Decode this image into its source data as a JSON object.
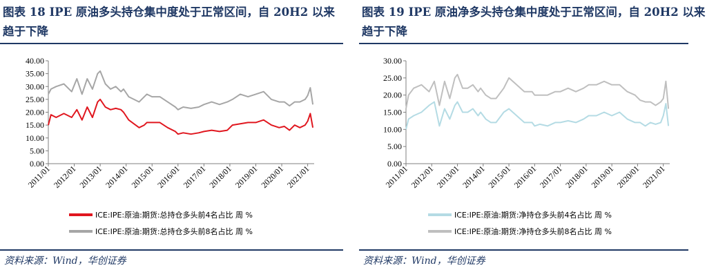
{
  "left": {
    "title": "图表 18   IPE 原油多头持仓集中度处于正常区间，自 20H2 以来趋于下降",
    "source": "资料来源：Wind，华创证券"
  },
  "right": {
    "title": "图表 19   IPE 原油净多头持仓集中度处于正常区间，自 20H2 以来趋于下降",
    "source": "资料来源：Wind，华创证券"
  },
  "chart_data": [
    {
      "type": "line",
      "ylim": [
        0,
        40
      ],
      "yticks": [
        "0.00",
        "5.00",
        "10.00",
        "15.00",
        "20.00",
        "25.00",
        "30.00",
        "35.00",
        "40.00"
      ],
      "categories": [
        "2011/01",
        "2012/01",
        "2013/01",
        "2014/01",
        "2015/01",
        "2016/01",
        "2017/01",
        "2018/01",
        "2019/01",
        "2020/01",
        "2021/01"
      ],
      "xlabel": "",
      "ylabel": "",
      "legend_position": "bottom",
      "series": [
        {
          "name": "ICE:IPE:原油:期货:总持仓多头前4名占比  周 %",
          "color": "#e0161e",
          "x": [
            2011.0,
            2011.1,
            2011.3,
            2011.6,
            2011.9,
            2012.1,
            2012.3,
            2012.5,
            2012.7,
            2012.9,
            2013.0,
            2013.2,
            2013.4,
            2013.6,
            2013.8,
            2013.9,
            2014.1,
            2014.3,
            2014.5,
            2014.7,
            2014.8,
            2015.0,
            2015.3,
            2015.6,
            2015.9,
            2016.0,
            2016.2,
            2016.5,
            2016.8,
            2017.0,
            2017.3,
            2017.6,
            2017.9,
            2018.1,
            2018.4,
            2018.7,
            2019.0,
            2019.3,
            2019.6,
            2019.9,
            2020.1,
            2020.3,
            2020.5,
            2020.7,
            2020.9,
            2021.0,
            2021.1,
            2021.2
          ],
          "values": [
            15,
            19,
            18,
            19.5,
            18,
            21,
            17,
            22,
            18,
            24,
            25,
            22,
            21,
            21.5,
            21,
            20,
            17,
            15.5,
            14,
            15,
            16,
            16,
            16,
            14,
            12.5,
            11.5,
            12,
            11.5,
            12,
            12.5,
            13,
            12.5,
            13,
            15,
            15.5,
            16,
            16,
            17,
            15,
            14,
            14.5,
            13,
            15,
            14,
            15,
            16.5,
            19.5,
            14
          ]
        },
        {
          "name": "ICE:IPE:原油:期货:总持仓多头前8名占比  周 %",
          "color": "#a6a6a6",
          "x": [
            2011.0,
            2011.1,
            2011.3,
            2011.6,
            2011.9,
            2012.1,
            2012.3,
            2012.5,
            2012.7,
            2012.9,
            2013.0,
            2013.2,
            2013.4,
            2013.6,
            2013.8,
            2013.9,
            2014.1,
            2014.3,
            2014.5,
            2014.7,
            2014.8,
            2015.0,
            2015.3,
            2015.6,
            2015.9,
            2016.0,
            2016.2,
            2016.5,
            2016.8,
            2017.0,
            2017.3,
            2017.6,
            2017.9,
            2018.1,
            2018.4,
            2018.7,
            2019.0,
            2019.3,
            2019.6,
            2019.9,
            2020.1,
            2020.3,
            2020.5,
            2020.7,
            2020.9,
            2021.0,
            2021.1,
            2021.2
          ],
          "values": [
            27,
            29,
            30,
            31,
            28,
            33,
            27,
            33,
            29,
            35,
            36,
            31,
            29,
            30,
            28,
            29,
            26,
            25,
            24,
            26,
            27,
            26,
            26,
            24,
            22,
            21,
            22,
            21.5,
            22,
            23,
            24,
            23,
            24,
            25,
            27,
            26,
            27,
            28,
            25,
            24,
            24,
            22.5,
            24,
            24,
            25,
            26.5,
            29.5,
            23
          ]
        }
      ]
    },
    {
      "type": "line",
      "ylim": [
        0,
        30
      ],
      "yticks": [
        "0.00",
        "5.00",
        "10.00",
        "15.00",
        "20.00",
        "25.00",
        "30.00"
      ],
      "categories": [
        "2011/01",
        "2012/01",
        "2013/01",
        "2014/01",
        "2015/01",
        "2016/01",
        "2017/01",
        "2018/01",
        "2019/01",
        "2020/01",
        "2021/01"
      ],
      "xlabel": "",
      "ylabel": "",
      "legend_position": "bottom",
      "series": [
        {
          "name": "ICE:IPE:原油:期货:净持仓多头前4名占比  周 %",
          "color": "#b4dbe4",
          "x": [
            2011.0,
            2011.1,
            2011.3,
            2011.6,
            2011.9,
            2012.1,
            2012.3,
            2012.5,
            2012.7,
            2012.9,
            2013.0,
            2013.2,
            2013.4,
            2013.6,
            2013.8,
            2013.9,
            2014.1,
            2014.3,
            2014.5,
            2014.7,
            2014.8,
            2015.0,
            2015.3,
            2015.6,
            2015.9,
            2016.0,
            2016.2,
            2016.5,
            2016.8,
            2017.0,
            2017.3,
            2017.6,
            2017.9,
            2018.1,
            2018.4,
            2018.7,
            2019.0,
            2019.3,
            2019.6,
            2019.9,
            2020.1,
            2020.3,
            2020.5,
            2020.7,
            2020.9,
            2021.0,
            2021.1,
            2021.2
          ],
          "values": [
            10,
            13,
            14,
            15,
            17,
            18,
            11,
            16,
            13,
            17,
            18,
            15,
            15,
            16,
            14,
            15,
            13,
            12,
            12,
            14,
            15,
            16,
            14,
            12,
            12,
            11,
            11.5,
            11,
            12,
            12,
            12.5,
            12,
            13,
            14,
            14,
            15,
            14,
            15,
            13,
            12,
            12,
            11,
            12,
            11.5,
            12,
            14,
            17.5,
            11
          ]
        },
        {
          "name": "ICE:IPE:原油:期货:净持仓多头前8名占比  周 %",
          "color": "#bfbfbf",
          "x": [
            2011.0,
            2011.1,
            2011.3,
            2011.6,
            2011.9,
            2012.1,
            2012.3,
            2012.5,
            2012.7,
            2012.9,
            2013.0,
            2013.2,
            2013.4,
            2013.6,
            2013.8,
            2013.9,
            2014.1,
            2014.3,
            2014.5,
            2014.7,
            2014.8,
            2015.0,
            2015.3,
            2015.6,
            2015.9,
            2016.0,
            2016.2,
            2016.5,
            2016.8,
            2017.0,
            2017.3,
            2017.6,
            2017.9,
            2018.1,
            2018.4,
            2018.7,
            2019.0,
            2019.3,
            2019.6,
            2019.9,
            2020.1,
            2020.3,
            2020.5,
            2020.7,
            2020.9,
            2021.0,
            2021.1,
            2021.2
          ],
          "values": [
            16,
            20,
            22,
            23,
            21,
            24,
            17,
            24,
            19,
            25,
            26,
            22,
            22,
            23,
            21,
            22,
            20,
            19,
            19,
            21,
            22,
            25,
            23,
            21,
            21,
            20,
            20,
            20,
            21,
            21,
            22,
            21,
            22,
            23,
            23,
            24,
            23,
            23,
            21,
            20,
            18.5,
            18,
            18,
            17,
            18,
            19,
            24,
            16
          ]
        }
      ]
    }
  ]
}
